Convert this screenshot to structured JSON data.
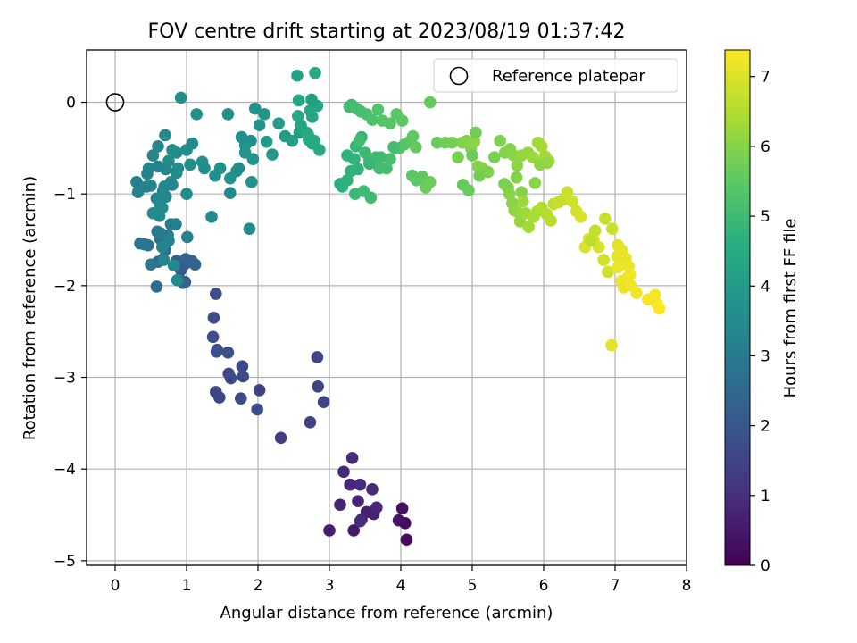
{
  "chart_data": {
    "type": "scatter",
    "title": "FOV centre drift starting at 2023/08/19 01:37:42",
    "xlabel": "Angular distance from reference (arcmin)",
    "ylabel": "Rotation from reference (arcmin)",
    "xlim": [
      -0.4,
      8.0
    ],
    "ylim": [
      -5.05,
      0.57
    ],
    "xticks": [
      "0",
      "1",
      "2",
      "3",
      "4",
      "5",
      "6",
      "7",
      "8"
    ],
    "yticks": [
      "−5",
      "−4",
      "−3",
      "−2",
      "−1",
      "0"
    ],
    "grid": true,
    "legend": {
      "position": "top-right",
      "label": "Reference platepar"
    },
    "reference_point": {
      "x": 0,
      "y": 0
    },
    "colorbar": {
      "label": "Hours from first FF file",
      "range": [
        0,
        7.38
      ],
      "ticks": [
        "0",
        "1",
        "2",
        "3",
        "4",
        "5",
        "6",
        "7"
      ],
      "colormap": "viridis",
      "stops": [
        "#440154",
        "#472d7b",
        "#3b528b",
        "#2c728e",
        "#21918c",
        "#28ae80",
        "#5ec962",
        "#addc30",
        "#fde725"
      ]
    },
    "x": [
      4.08,
      4.06,
      3.97,
      4.02,
      3.34,
      3.0,
      3.52,
      3.62,
      3.45,
      3.4,
      3.15,
      3.29,
      3.32,
      3.2,
      3.66,
      3.6,
      3.43,
      3.43,
      2.32,
      2.02,
      2.73,
      2.83,
      2.92,
      2.84,
      1.46,
      1.41,
      1.59,
      1.62,
      1.79,
      1.78,
      1.76,
      1.99,
      1.37,
      1.38,
      1.43,
      1.41,
      1.58,
      1.42,
      0.98,
      0.9,
      0.92,
      0.97,
      0.94,
      0.86,
      0.99,
      1.07,
      1.12,
      0.95,
      0.58,
      0.6,
      0.67,
      0.7,
      0.63,
      0.46,
      0.35,
      0.41,
      0.5,
      0.59,
      0.64,
      0.74,
      0.78,
      0.85,
      1.01,
      0.75,
      0.66,
      0.68,
      0.82,
      0.87,
      0.3,
      0.32,
      0.47,
      0.53,
      0.6,
      0.7,
      0.8,
      0.75,
      0.88,
      0.86,
      0.78,
      0.67,
      0.58,
      0.5,
      0.44,
      0.45,
      0.6,
      0.71,
      0.8,
      0.69,
      0.66,
      0.62,
      0.53,
      0.63,
      0.71,
      1.35,
      1.0,
      0.86,
      1.22,
      1.47,
      1.61,
      1.7,
      1.05,
      1.25,
      1.4,
      1.61,
      1.0,
      1.08,
      1.14,
      1.9,
      1.82,
      1.93,
      1.82,
      1.91,
      1.96,
      1.58,
      1.77,
      1.73,
      1.88,
      0.92,
      2.02,
      2.09,
      2.2,
      2.12,
      2.29,
      2.38,
      2.48,
      2.58,
      2.62,
      2.6,
      2.68,
      2.7,
      2.76,
      2.86,
      2.79,
      2.71,
      2.56,
      2.73,
      2.83,
      2.57,
      2.55,
      2.75,
      2.76,
      2.8,
      3.15,
      3.18,
      3.25,
      3.3,
      3.35,
      3.37,
      3.45,
      3.5,
      3.56,
      3.65,
      3.7,
      3.8,
      3.85,
      3.92,
      3.98,
      4.05,
      4.12,
      4.16,
      4.22,
      4.3,
      4.41,
      4.51,
      3.28,
      3.31,
      3.38,
      3.44,
      3.52,
      3.6,
      3.68,
      3.74,
      3.85,
      3.94,
      4.02,
      4.17,
      4.21,
      4.35,
      3.25,
      3.4,
      3.56,
      3.72,
      3.9,
      3.42,
      3.36,
      3.48,
      3.58,
      4.41,
      4.62,
      4.72,
      4.8,
      4.86,
      4.92,
      4.98,
      5.03,
      5.08,
      5.14,
      5.22,
      5.31,
      5.39,
      5.46,
      5.53,
      5.58,
      5.63,
      5.69,
      5.78,
      5.85,
      5.92,
      5.97,
      6.02,
      6.07,
      4.87,
      4.95,
      5.0,
      5.05,
      5.1,
      5.45,
      5.5,
      5.62,
      5.69,
      5.88,
      5.95,
      6.05,
      5.52,
      5.56,
      5.59,
      5.64,
      5.67,
      5.71,
      5.75,
      5.79,
      5.86,
      5.91,
      5.97,
      6.04,
      6.1,
      6.14,
      6.21,
      6.28,
      6.33,
      6.4,
      6.46,
      6.52,
      6.58,
      6.63,
      6.7,
      6.77,
      6.84,
      6.9,
      6.96,
      6.86,
      6.72,
      6.66,
      7.04,
      7.09,
      7.15,
      7.19,
      7.21,
      7.09,
      7.12,
      7.3,
      7.46,
      7.59,
      7.62,
      7.56,
      7.22,
      7.18,
      7.04,
      7.03,
      6.95
    ],
    "y": [
      -4.77,
      -4.59,
      -4.56,
      -4.43,
      -4.67,
      -4.67,
      -4.47,
      -4.49,
      -4.55,
      -4.35,
      -4.39,
      -4.17,
      -3.88,
      -4.03,
      -4.42,
      -4.22,
      -4.17,
      -4.57,
      -3.66,
      -3.14,
      -3.49,
      -2.78,
      -3.27,
      -3.1,
      -3.22,
      -3.16,
      -2.96,
      -3.01,
      -2.99,
      -2.88,
      -3.23,
      -3.35,
      -2.56,
      -2.35,
      -2.7,
      -2.09,
      -2.73,
      -2.72,
      -1.96,
      -1.93,
      -1.83,
      -1.77,
      -1.74,
      -1.73,
      -1.71,
      -1.73,
      -1.77,
      -1.97,
      -2.01,
      -1.74,
      -1.71,
      -1.61,
      -1.49,
      -1.56,
      -1.54,
      -1.55,
      -1.77,
      -1.41,
      -1.43,
      -1.45,
      -1.33,
      -1.33,
      -1.47,
      -1.51,
      -1.58,
      -1.72,
      -1.78,
      -1.94,
      -0.87,
      -0.98,
      -0.72,
      -0.58,
      -0.48,
      -0.36,
      -0.52,
      -0.64,
      -0.72,
      -0.77,
      -0.87,
      -0.97,
      -1.05,
      -0.91,
      -0.92,
      -0.78,
      -0.7,
      -0.73,
      -0.9,
      -0.92,
      -1.15,
      -1.24,
      -1.21,
      -1.14,
      -1.03,
      -1.25,
      -1.0,
      -0.55,
      -0.65,
      -0.72,
      -0.83,
      -0.75,
      -0.68,
      -0.72,
      -0.8,
      -0.99,
      -0.52,
      -0.45,
      -0.13,
      -0.42,
      -0.47,
      -0.62,
      -0.55,
      -0.87,
      -0.07,
      -0.13,
      -0.38,
      -0.72,
      -1.38,
      0.05,
      -0.25,
      -0.13,
      -0.57,
      -0.43,
      -0.23,
      -0.37,
      -0.42,
      -0.33,
      -0.3,
      -0.25,
      -0.33,
      -0.35,
      -0.45,
      -0.52,
      -0.42,
      -0.41,
      -0.15,
      -0.09,
      -0.04,
      0.02,
      0.29,
      0.03,
      -0.16,
      0.32,
      -0.89,
      -0.92,
      -0.85,
      -0.75,
      -0.62,
      -0.48,
      -0.38,
      -0.55,
      -0.63,
      -0.6,
      -0.72,
      -0.72,
      -0.62,
      -0.5,
      -0.5,
      -0.46,
      -0.43,
      -0.8,
      -0.85,
      -0.81,
      0.0,
      -0.44,
      -0.05,
      -0.03,
      -0.07,
      -0.1,
      -0.13,
      -0.19,
      -0.08,
      -0.2,
      -0.23,
      -0.13,
      -0.2,
      -0.37,
      -0.49,
      -0.93,
      -0.58,
      -0.73,
      -0.67,
      -0.6,
      -0.49,
      -0.42,
      -1.0,
      -0.97,
      -1.04,
      -0.87,
      -0.44,
      -0.44,
      -0.6,
      -0.44,
      -0.42,
      -0.5,
      -0.43,
      -0.7,
      -0.72,
      -0.76,
      -0.6,
      -0.42,
      -0.55,
      -0.51,
      -0.58,
      -0.69,
      -0.58,
      -0.55,
      -0.6,
      -0.44,
      -0.48,
      -0.59,
      -0.64,
      -0.9,
      -0.96,
      -0.58,
      -0.33,
      -0.8,
      -0.89,
      -0.93,
      -0.82,
      -0.98,
      -0.88,
      -0.68,
      -0.66,
      -1.0,
      -1.1,
      -1.18,
      -1.2,
      -1.3,
      -1.08,
      -1.21,
      -1.36,
      -1.25,
      -1.19,
      -1.15,
      -1.22,
      -1.29,
      -1.11,
      -1.09,
      -1.06,
      -0.98,
      -1.08,
      -1.19,
      -1.25,
      -1.58,
      -1.49,
      -1.5,
      -1.58,
      -1.72,
      -1.85,
      -1.38,
      -1.27,
      -1.4,
      -1.51,
      -1.56,
      -1.61,
      -1.7,
      -1.79,
      -1.88,
      -1.95,
      -2.02,
      -2.08,
      -2.15,
      -2.2,
      -2.25,
      -2.1,
      -2.0,
      -1.91,
      -1.8,
      -1.68,
      -2.65
    ],
    "hours": [
      0.2,
      0.25,
      0.35,
      0.28,
      0.55,
      0.6,
      0.65,
      0.68,
      0.72,
      0.7,
      0.75,
      0.8,
      0.85,
      0.82,
      0.78,
      0.88,
      0.9,
      0.92,
      1.35,
      1.4,
      1.45,
      1.48,
      1.5,
      1.52,
      1.55,
      1.58,
      1.6,
      1.62,
      1.64,
      1.66,
      1.68,
      1.7,
      1.72,
      1.74,
      1.76,
      1.78,
      1.8,
      1.82,
      2.0,
      2.05,
      2.1,
      2.15,
      2.2,
      2.25,
      2.3,
      2.35,
      2.4,
      2.45,
      2.5,
      2.55,
      2.6,
      2.65,
      2.7,
      2.75,
      2.8,
      2.85,
      2.9,
      2.95,
      3.0,
      3.05,
      3.1,
      3.15,
      3.2,
      3.25,
      3.3,
      3.35,
      3.4,
      3.45,
      3.2,
      3.25,
      3.3,
      3.35,
      3.4,
      3.45,
      3.5,
      3.55,
      3.55,
      3.5,
      3.45,
      3.4,
      3.35,
      3.3,
      3.25,
      3.2,
      3.25,
      3.3,
      3.35,
      3.4,
      3.45,
      3.5,
      3.55,
      3.5,
      3.45,
      3.5,
      3.55,
      3.6,
      3.65,
      3.7,
      3.75,
      3.7,
      3.65,
      3.6,
      3.55,
      3.5,
      3.55,
      3.6,
      3.65,
      3.7,
      3.75,
      3.8,
      3.85,
      3.8,
      3.75,
      3.7,
      3.65,
      3.6,
      3.55,
      3.6,
      3.8,
      3.85,
      3.9,
      3.95,
      4.0,
      4.05,
      4.1,
      4.15,
      4.2,
      4.25,
      4.3,
      4.35,
      4.4,
      4.45,
      4.5,
      4.45,
      4.4,
      4.35,
      4.3,
      4.25,
      4.2,
      4.15,
      4.3,
      4.5,
      4.6,
      4.65,
      4.7,
      4.75,
      4.8,
      4.85,
      4.9,
      4.95,
      5.0,
      5.05,
      5.1,
      5.15,
      5.2,
      5.25,
      5.3,
      5.35,
      5.4,
      5.45,
      5.5,
      5.55,
      5.6,
      5.65,
      5.0,
      5.05,
      5.1,
      5.15,
      5.2,
      5.25,
      5.3,
      5.35,
      5.4,
      5.45,
      5.5,
      5.55,
      5.6,
      5.65,
      4.7,
      4.8,
      4.9,
      5.0,
      5.1,
      5.05,
      4.95,
      5.0,
      5.05,
      5.7,
      5.75,
      5.8,
      5.85,
      5.9,
      5.95,
      6.0,
      6.05,
      6.0,
      5.95,
      5.9,
      5.85,
      5.9,
      5.95,
      6.0,
      6.05,
      6.1,
      6.15,
      6.2,
      6.25,
      6.3,
      6.35,
      6.35,
      6.3,
      5.6,
      5.65,
      5.7,
      5.75,
      5.8,
      5.85,
      5.9,
      5.95,
      6.0,
      6.05,
      6.1,
      6.15,
      6.0,
      6.05,
      6.1,
      6.15,
      6.2,
      6.25,
      6.3,
      6.35,
      6.4,
      6.45,
      6.5,
      6.55,
      6.6,
      6.65,
      6.7,
      6.75,
      6.8,
      6.85,
      6.9,
      6.95,
      7.0,
      7.05,
      7.0,
      6.95,
      6.9,
      6.85,
      6.8,
      6.75,
      6.7,
      6.65,
      7.05,
      7.1,
      7.15,
      7.2,
      7.25,
      7.2,
      7.15,
      7.25,
      7.3,
      7.35,
      7.38,
      7.32,
      7.28,
      7.22,
      7.18,
      7.12,
      7.08
    ]
  }
}
